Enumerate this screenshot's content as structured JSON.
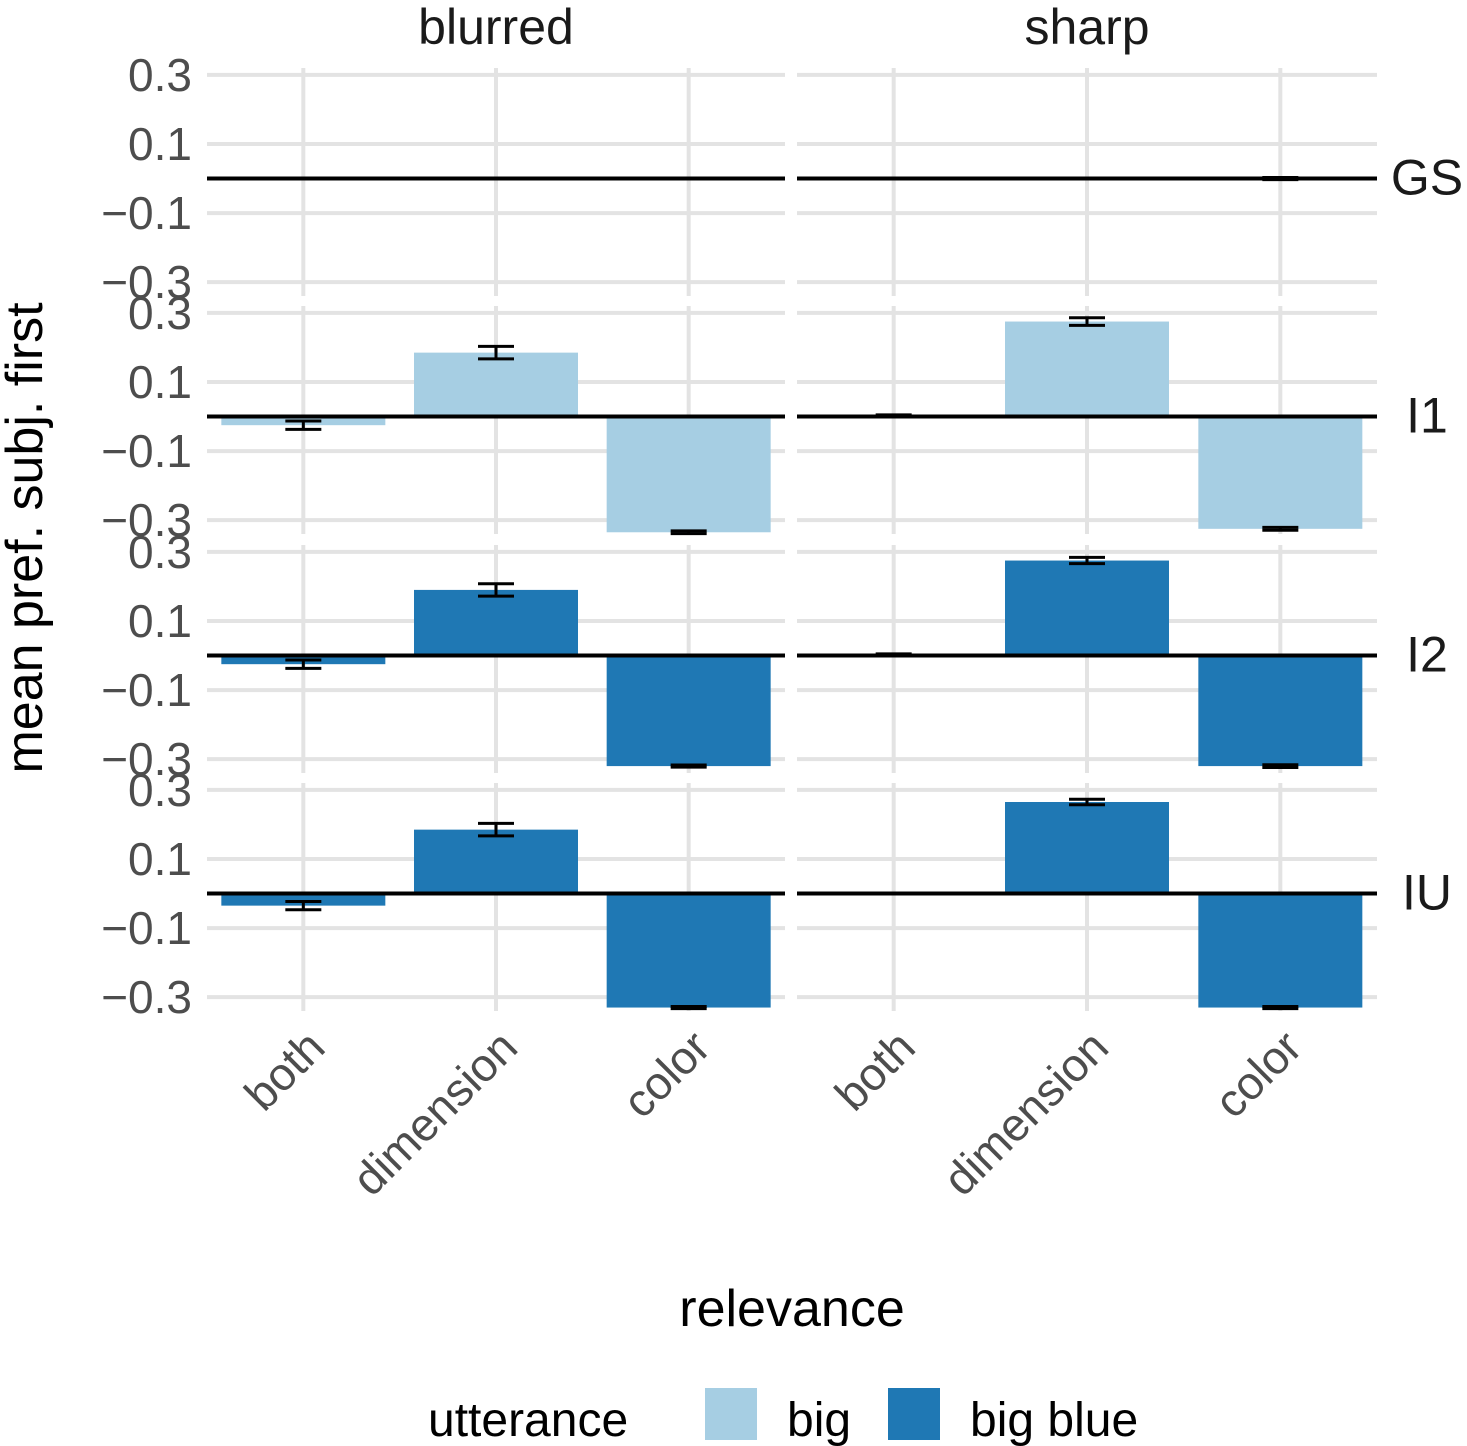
{
  "chart_data": {
    "type": "bar",
    "facet_columns": [
      "blurred",
      "sharp"
    ],
    "facet_rows": [
      "GS",
      "I1",
      "I2",
      "IU"
    ],
    "categories": [
      "both",
      "dimension",
      "color"
    ],
    "xlabel": "relevance",
    "ylabel": "mean pref. subj. first",
    "ylim": [
      -0.34,
      0.32
    ],
    "yticks": [
      0.3,
      0.1,
      -0.1,
      -0.3
    ],
    "ytick_labels": [
      "0.3",
      "0.1",
      "−0.1",
      "−0.3"
    ],
    "legend": {
      "title": "utterance",
      "position": "bottom",
      "entries": [
        {
          "name": "big",
          "color": "#a6cee3"
        },
        {
          "name": "big blue",
          "color": "#1f78b4"
        }
      ]
    },
    "grid": true,
    "panels": [
      {
        "row": "GS",
        "column": "blurred",
        "utterance": null,
        "values": [
          0,
          0,
          0
        ],
        "errors": [
          0,
          0,
          0
        ]
      },
      {
        "row": "GS",
        "column": "sharp",
        "utterance": null,
        "values": [
          0,
          0,
          0
        ],
        "errors": [
          0,
          0,
          0.003
        ]
      },
      {
        "row": "I1",
        "column": "blurred",
        "utterance": "big",
        "values": [
          -0.025,
          0.185,
          -0.335
        ],
        "errors": [
          0.012,
          0.018,
          0.004
        ]
      },
      {
        "row": "I1",
        "column": "sharp",
        "utterance": "big",
        "values": [
          0.003,
          0.275,
          -0.325
        ],
        "errors": [
          0.002,
          0.011,
          0.004
        ]
      },
      {
        "row": "I2",
        "column": "blurred",
        "utterance": "big blue",
        "values": [
          -0.025,
          0.19,
          -0.32
        ],
        "errors": [
          0.012,
          0.018,
          0.003
        ]
      },
      {
        "row": "I2",
        "column": "sharp",
        "utterance": "big blue",
        "values": [
          0.003,
          0.275,
          -0.32
        ],
        "errors": [
          0.002,
          0.009,
          0.004
        ]
      },
      {
        "row": "IU",
        "column": "blurred",
        "utterance": "big blue",
        "values": [
          -0.035,
          0.185,
          -0.33
        ],
        "errors": [
          0.012,
          0.018,
          0.003
        ]
      },
      {
        "row": "IU",
        "column": "sharp",
        "utterance": "big blue",
        "values": [
          0,
          0.265,
          -0.33
        ],
        "errors": [
          0,
          0.008,
          0.003
        ]
      }
    ]
  }
}
